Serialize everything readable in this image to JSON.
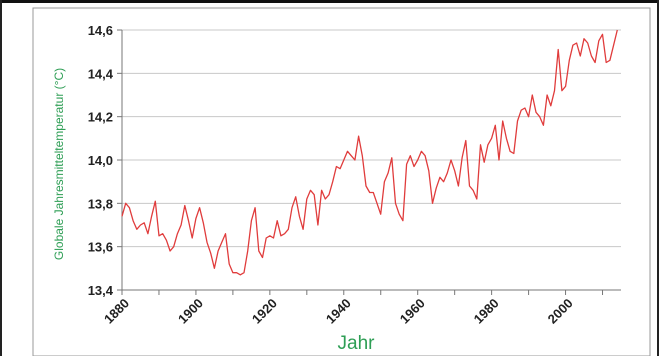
{
  "chart_data": {
    "type": "line",
    "title": "",
    "xlabel": "Jahr",
    "ylabel": "Globale Jahresmitteltemperatur (°C)",
    "xlim": [
      1880,
      2015
    ],
    "ylim": [
      13.4,
      14.6
    ],
    "x_ticks": [
      "1880",
      "1900",
      "1920",
      "1940",
      "1960",
      "1980",
      "2000"
    ],
    "y_ticks": [
      "13,4",
      "13,6",
      "13,8",
      "14,0",
      "14,2",
      "14,4",
      "14,6"
    ],
    "grid": true,
    "legend": "none",
    "series": [
      {
        "color": "#e03c3c",
        "x": [
          1880,
          1881,
          1882,
          1883,
          1884,
          1885,
          1886,
          1887,
          1888,
          1889,
          1890,
          1891,
          1892,
          1893,
          1894,
          1895,
          1896,
          1897,
          1898,
          1899,
          1900,
          1901,
          1902,
          1903,
          1904,
          1905,
          1906,
          1907,
          1908,
          1909,
          1910,
          1911,
          1912,
          1913,
          1914,
          1915,
          1916,
          1917,
          1918,
          1919,
          1920,
          1921,
          1922,
          1923,
          1924,
          1925,
          1926,
          1927,
          1928,
          1929,
          1930,
          1931,
          1932,
          1933,
          1934,
          1935,
          1936,
          1937,
          1938,
          1939,
          1940,
          1941,
          1942,
          1943,
          1944,
          1945,
          1946,
          1947,
          1948,
          1949,
          1950,
          1951,
          1952,
          1953,
          1954,
          1955,
          1956,
          1957,
          1958,
          1959,
          1960,
          1961,
          1962,
          1963,
          1964,
          1965,
          1966,
          1967,
          1968,
          1969,
          1970,
          1971,
          1972,
          1973,
          1974,
          1975,
          1976,
          1977,
          1978,
          1979,
          1980,
          1981,
          1982,
          1983,
          1984,
          1985,
          1986,
          1987,
          1988,
          1989,
          1990,
          1991,
          1992,
          1993,
          1994,
          1995,
          1996,
          1997,
          1998,
          1999,
          2000,
          2001,
          2002,
          2003,
          2004,
          2005,
          2006,
          2007,
          2008,
          2009,
          2010,
          2011,
          2012,
          2013,
          2014
        ],
        "y": [
          13.74,
          13.8,
          13.78,
          13.72,
          13.68,
          13.7,
          13.71,
          13.66,
          13.74,
          13.81,
          13.65,
          13.66,
          13.63,
          13.58,
          13.6,
          13.66,
          13.7,
          13.79,
          13.72,
          13.64,
          13.73,
          13.78,
          13.71,
          13.62,
          13.57,
          13.5,
          13.58,
          13.62,
          13.66,
          13.52,
          13.48,
          13.48,
          13.47,
          13.48,
          13.58,
          13.72,
          13.78,
          13.58,
          13.55,
          13.64,
          13.65,
          13.64,
          13.72,
          13.65,
          13.66,
          13.68,
          13.78,
          13.83,
          13.74,
          13.68,
          13.82,
          13.86,
          13.84,
          13.7,
          13.86,
          13.82,
          13.84,
          13.9,
          13.97,
          13.96,
          14.0,
          14.04,
          14.02,
          14.0,
          14.11,
          14.02,
          13.88,
          13.85,
          13.85,
          13.8,
          13.75,
          13.9,
          13.94,
          14.01,
          13.8,
          13.75,
          13.72,
          13.98,
          14.02,
          13.97,
          14.0,
          14.04,
          14.02,
          13.95,
          13.8,
          13.87,
          13.92,
          13.9,
          13.94,
          14.0,
          13.95,
          13.88,
          14.01,
          14.09,
          13.88,
          13.86,
          13.82,
          14.07,
          13.99,
          14.07,
          14.1,
          14.16,
          14.0,
          14.18,
          14.1,
          14.04,
          14.03,
          14.18,
          14.23,
          14.24,
          14.2,
          14.3,
          14.22,
          14.2,
          14.16,
          14.3,
          14.25,
          14.32,
          14.51,
          14.32,
          14.34,
          14.46,
          14.53,
          14.54,
          14.48,
          14.56,
          14.54,
          14.48,
          14.45,
          14.55,
          14.58,
          14.45,
          14.46,
          14.53,
          14.6
        ]
      }
    ]
  }
}
